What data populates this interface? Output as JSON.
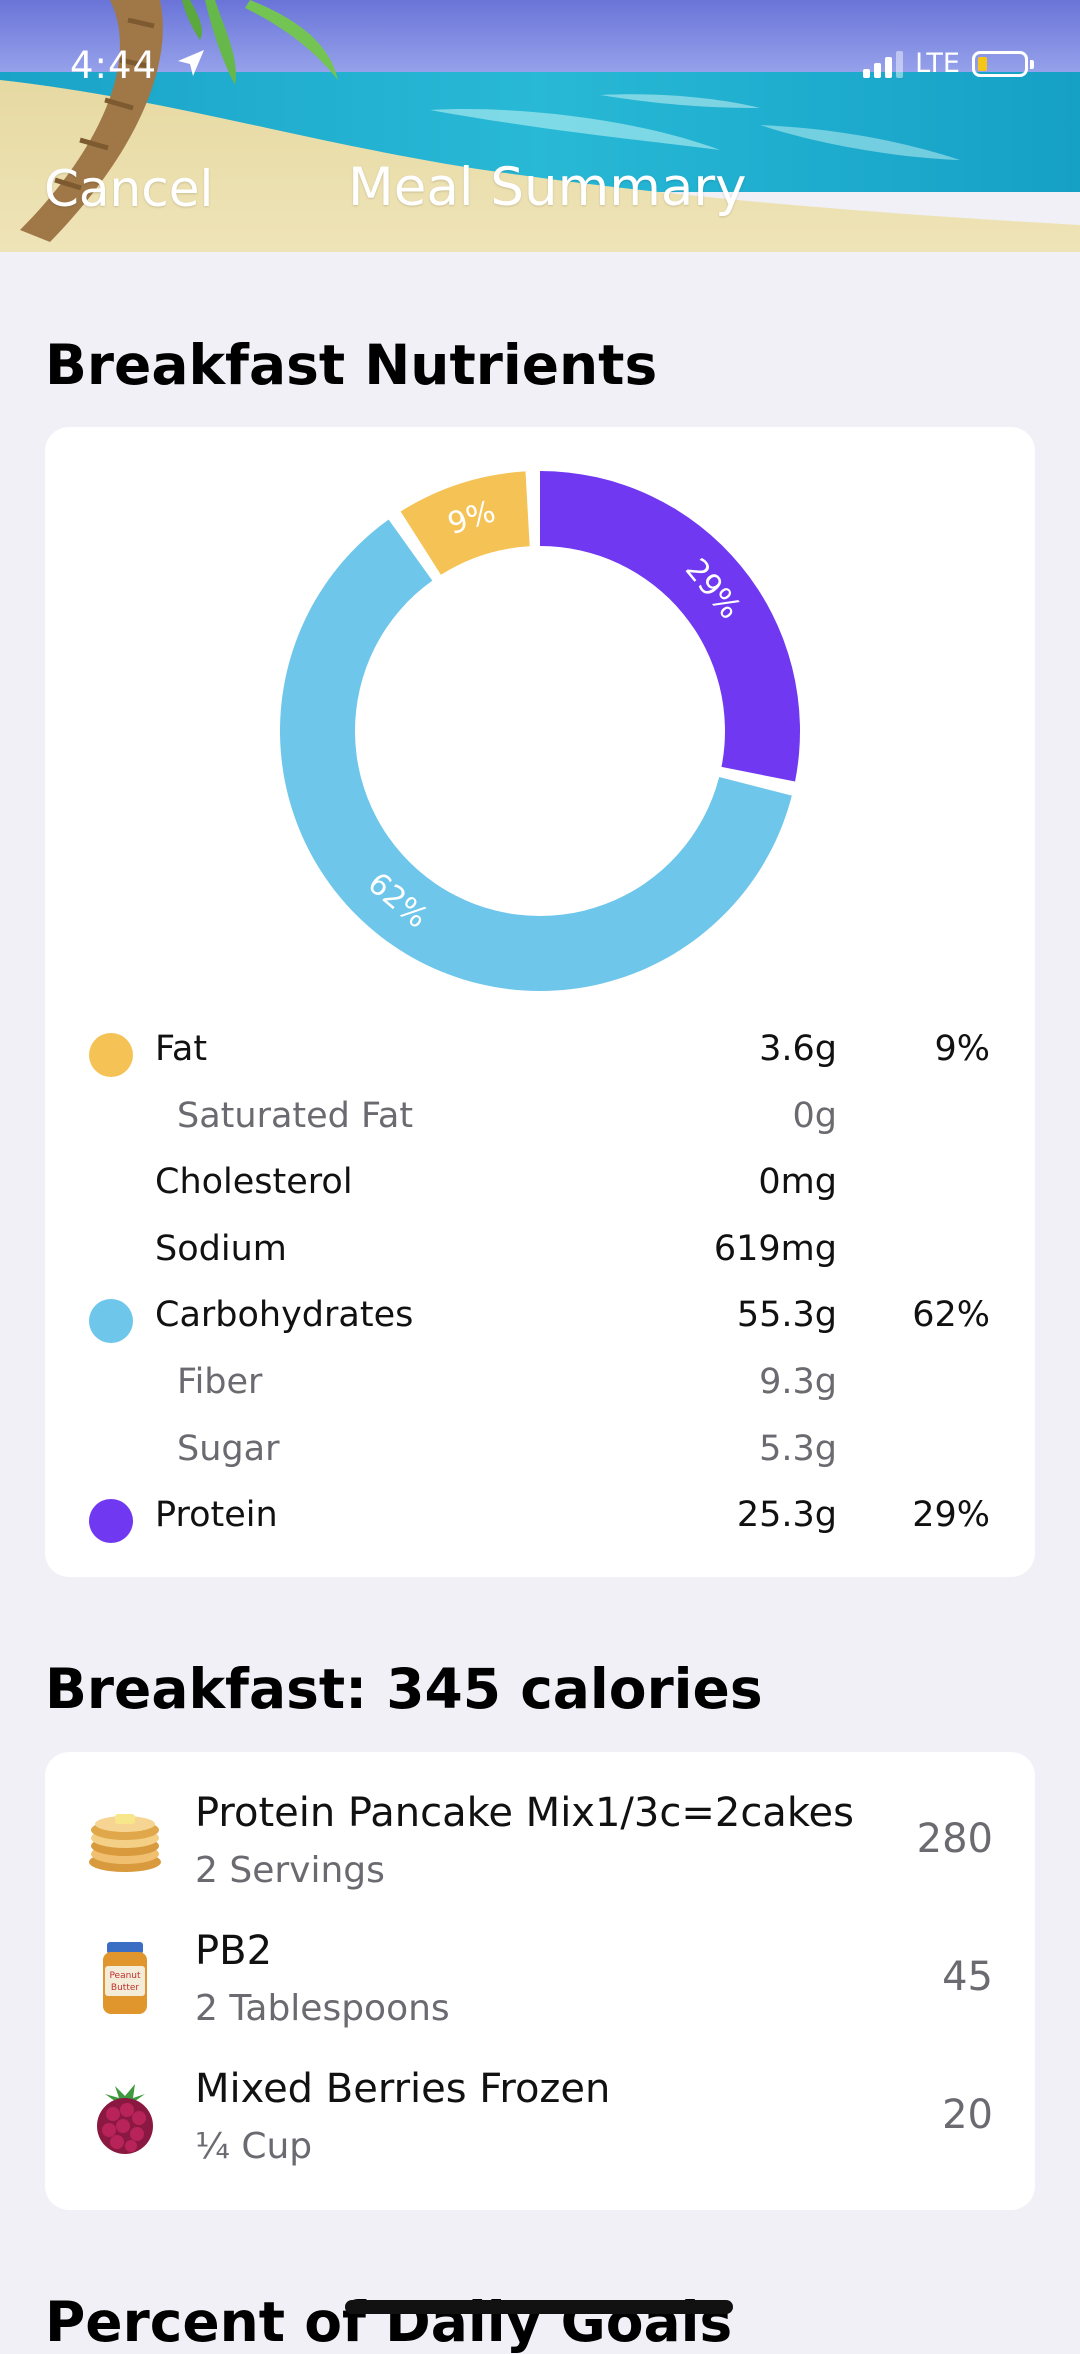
{
  "status_bar": {
    "time": "4:44",
    "network": "LTE"
  },
  "nav": {
    "cancel_label": "Cancel",
    "title": "Meal Summary"
  },
  "nutrients_section": {
    "title": "Breakfast Nutrients",
    "rows": [
      {
        "name": "Fat",
        "amount": "3.6g",
        "percent": "9%",
        "color": "#f5c255",
        "indent": false
      },
      {
        "name": "Saturated Fat",
        "amount": "0g",
        "percent": "",
        "indent": true
      },
      {
        "name": "Cholesterol",
        "amount": "0mg",
        "percent": "",
        "indent": false
      },
      {
        "name": "Sodium",
        "amount": "619mg",
        "percent": "",
        "indent": false
      },
      {
        "name": "Carbohydrates",
        "amount": "55.3g",
        "percent": "62%",
        "color": "#6ec6ea",
        "indent": false
      },
      {
        "name": "Fiber",
        "amount": "9.3g",
        "percent": "",
        "indent": true
      },
      {
        "name": "Sugar",
        "amount": "5.3g",
        "percent": "",
        "indent": true
      },
      {
        "name": "Protein",
        "amount": "25.3g",
        "percent": "29%",
        "color": "#7038f0",
        "indent": false
      }
    ]
  },
  "chart_data": {
    "type": "pie",
    "variant": "donut",
    "categories": [
      "Fat",
      "Protein",
      "Carbohydrates"
    ],
    "values": [
      9,
      29,
      62
    ],
    "labels": [
      "9%",
      "29%",
      "62%"
    ],
    "colors": [
      "#f5c255",
      "#7038f0",
      "#6ec6ea"
    ]
  },
  "meal_section": {
    "title": "Breakfast: 345 calories",
    "items": [
      {
        "name": "Protein Pancake Mix1/3c=2cakes",
        "serving": "2 Servings",
        "calories": "280",
        "icon": "pancakes-icon"
      },
      {
        "name": "PB2",
        "serving": "2 Tablespoons",
        "calories": "45",
        "icon": "peanut-butter-jar-icon",
        "jar_text": "Peanut Butter"
      },
      {
        "name": "Mixed Berries Frozen",
        "serving": "¼ Cup",
        "calories": "20",
        "icon": "raspberry-icon"
      }
    ]
  },
  "goals_section": {
    "title": "Percent of Daily Goals"
  }
}
